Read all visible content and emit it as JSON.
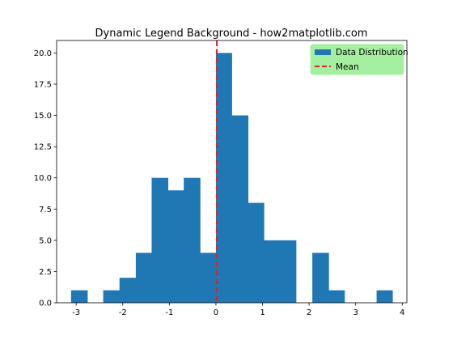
{
  "chart_data": {
    "type": "bar",
    "title": "Dynamic Legend Background - how2matplotlib.com",
    "xlabel": "",
    "ylabel": "",
    "xlim": [
      -3.42,
      4.1
    ],
    "ylim": [
      0,
      21
    ],
    "x_ticks": [
      -3,
      -2,
      -1,
      0,
      1,
      2,
      3,
      4
    ],
    "x_tick_labels": [
      "-3",
      "-2",
      "-1",
      "0",
      "1",
      "2",
      "3",
      "4"
    ],
    "y_ticks": [
      0,
      2.5,
      5,
      7.5,
      10,
      12.5,
      15,
      17.5,
      20
    ],
    "y_tick_labels": [
      "0.0",
      "2.5",
      "5.0",
      "7.5",
      "10.0",
      "12.5",
      "15.0",
      "17.5",
      "20.0"
    ],
    "grid": false,
    "bins": [
      {
        "x0": -3.11,
        "x1": -2.76,
        "count": 1
      },
      {
        "x0": -2.76,
        "x1": -2.42,
        "count": 0
      },
      {
        "x0": -2.42,
        "x1": -2.07,
        "count": 1
      },
      {
        "x0": -2.07,
        "x1": -1.72,
        "count": 2
      },
      {
        "x0": -1.72,
        "x1": -1.38,
        "count": 4
      },
      {
        "x0": -1.38,
        "x1": -1.03,
        "count": 10
      },
      {
        "x0": -1.03,
        "x1": -0.69,
        "count": 9
      },
      {
        "x0": -0.69,
        "x1": -0.34,
        "count": 10
      },
      {
        "x0": -0.34,
        "x1": 0.0,
        "count": 4
      },
      {
        "x0": 0.0,
        "x1": 0.34,
        "count": 20
      },
      {
        "x0": 0.34,
        "x1": 0.69,
        "count": 15
      },
      {
        "x0": 0.69,
        "x1": 1.03,
        "count": 8
      },
      {
        "x0": 1.03,
        "x1": 1.38,
        "count": 5
      },
      {
        "x0": 1.38,
        "x1": 1.72,
        "count": 5
      },
      {
        "x0": 1.72,
        "x1": 2.07,
        "count": 0
      },
      {
        "x0": 2.07,
        "x1": 2.42,
        "count": 4
      },
      {
        "x0": 2.42,
        "x1": 2.76,
        "count": 1
      },
      {
        "x0": 2.76,
        "x1": 3.11,
        "count": 0
      },
      {
        "x0": 3.11,
        "x1": 3.45,
        "count": 0
      },
      {
        "x0": 3.45,
        "x1": 3.79,
        "count": 1
      }
    ],
    "mean": 0.02,
    "series": [
      {
        "name": "Data Distribution",
        "kind": "histogram",
        "color": "#1f77b4"
      },
      {
        "name": "Mean",
        "kind": "vline-dashed",
        "color": "#d62728"
      }
    ],
    "legend": {
      "placement": "top-right",
      "background": "#a5f0a0"
    }
  }
}
